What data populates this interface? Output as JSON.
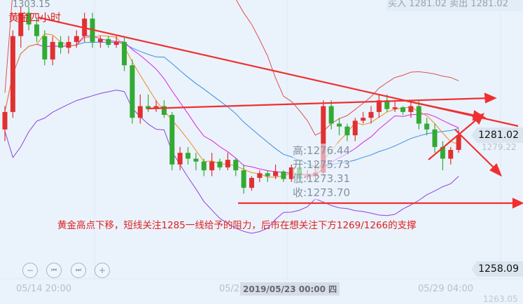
{
  "header": {
    "title": "黄金四小时",
    "top_price": "1303.15",
    "buy_label": "买入",
    "buy_price": "1281.02",
    "sell_label": "卖出",
    "sell_price": "1281.02"
  },
  "tooltip": {
    "high": "高:1276.44",
    "open": "开:1275.73",
    "low": "低:1273.31",
    "close": "收:1273.70"
  },
  "annotation": "黄金高点下移，短线关注1285一线给予的阻力，后市在想关注下方1269/1266的支撑",
  "price_tags": {
    "current": "1281.02",
    "secondary": "1279.22",
    "crosshair": "1258.09",
    "bottom": "1263.05"
  },
  "controls": [
    {
      "icon": "zoom-out-icon",
      "glyph": "−"
    },
    {
      "icon": "step-back-icon",
      "glyph": "⏮"
    },
    {
      "icon": "step-forward-icon",
      "glyph": "⏭"
    },
    {
      "icon": "zoom-in-icon",
      "glyph": "+"
    }
  ],
  "x_labels": {
    "left": "05/14 20:00",
    "mid": "05/2",
    "selected": "2019/05/23 00:00 四",
    "right": "05/29 04:00"
  },
  "colors": {
    "up": "#e03030",
    "down": "#33aa33",
    "ma_fast": "#f08a1c",
    "ma_mid": "#e020e0",
    "ma_slow": "#3a8ee0",
    "boll_upper": "#e05050",
    "boll_lower": "#9040e0",
    "trend": "#f03030"
  },
  "chart_data": {
    "type": "candlestick",
    "ylim": [
      1258,
      1304.2
    ],
    "ohlc": [
      [
        1282,
        1286,
        1280,
        1285
      ],
      [
        1285,
        1299,
        1284,
        1298
      ],
      [
        1298,
        1303,
        1296,
        1302
      ],
      [
        1302,
        1303,
        1299,
        1300
      ],
      [
        1300,
        1301,
        1297,
        1298
      ],
      [
        1298,
        1299,
        1293,
        1294
      ],
      [
        1294,
        1298,
        1293,
        1297
      ],
      [
        1297,
        1298,
        1295,
        1296
      ],
      [
        1296,
        1298,
        1295,
        1297
      ],
      [
        1297,
        1299,
        1296,
        1298
      ],
      [
        1298,
        1302,
        1297,
        1301
      ],
      [
        1301,
        1302,
        1296,
        1297
      ],
      [
        1297,
        1298,
        1296,
        1297.5
      ],
      [
        1297.5,
        1298,
        1296,
        1296.5
      ],
      [
        1296.5,
        1298,
        1296,
        1297
      ],
      [
        1297,
        1298,
        1292,
        1293
      ],
      [
        1293,
        1294,
        1283,
        1284
      ],
      [
        1284,
        1288,
        1283,
        1286
      ],
      [
        1286,
        1288,
        1285,
        1285.5
      ],
      [
        1285.5,
        1287,
        1285,
        1286
      ],
      [
        1286,
        1287,
        1284,
        1284.5
      ],
      [
        1284.5,
        1285,
        1275,
        1276
      ],
      [
        1276,
        1279,
        1275,
        1278
      ],
      [
        1278,
        1279,
        1276,
        1277
      ],
      [
        1277,
        1278,
        1275,
        1276.5
      ],
      [
        1276.5,
        1277,
        1274,
        1275
      ],
      [
        1275,
        1278,
        1274,
        1276.5
      ],
      [
        1276.5,
        1277,
        1275,
        1275.5
      ],
      [
        1275.5,
        1278,
        1275,
        1276.8
      ],
      [
        1276.8,
        1277,
        1274,
        1275
      ],
      [
        1275,
        1276,
        1271,
        1272
      ],
      [
        1272,
        1274,
        1271.5,
        1273.7
      ],
      [
        1273.7,
        1275,
        1273,
        1274.5
      ],
      [
        1274.5,
        1275,
        1273,
        1274
      ],
      [
        1274,
        1276,
        1273.5,
        1274.8
      ],
      [
        1274.8,
        1275,
        1273,
        1273.5
      ],
      [
        1273.5,
        1276,
        1273,
        1275.5
      ],
      [
        1275.5,
        1276,
        1273,
        1273.8
      ],
      [
        1273.8,
        1275,
        1273.3,
        1274
      ],
      [
        1274,
        1276.4,
        1273.3,
        1274.6
      ],
      [
        1274.6,
        1287,
        1274,
        1286
      ],
      [
        1286,
        1287,
        1282,
        1283
      ],
      [
        1283,
        1284,
        1281,
        1282.5
      ],
      [
        1282.5,
        1283,
        1280,
        1281
      ],
      [
        1281,
        1284,
        1280,
        1283.5
      ],
      [
        1283.5,
        1285,
        1283,
        1284
      ],
      [
        1284,
        1286,
        1283,
        1285
      ],
      [
        1285,
        1288,
        1284,
        1287
      ],
      [
        1287,
        1288,
        1285,
        1285.5
      ],
      [
        1285.5,
        1287,
        1285,
        1285.8
      ],
      [
        1285.8,
        1286,
        1284.5,
        1285
      ],
      [
        1285,
        1287,
        1284,
        1286
      ],
      [
        1286,
        1287,
        1282,
        1283
      ],
      [
        1283,
        1284,
        1281,
        1282
      ],
      [
        1282,
        1283,
        1278,
        1279
      ],
      [
        1279,
        1280,
        1275,
        1277
      ],
      [
        1277,
        1279,
        1276,
        1278.5
      ],
      [
        1278.5,
        1282,
        1278,
        1281.02
      ]
    ]
  }
}
